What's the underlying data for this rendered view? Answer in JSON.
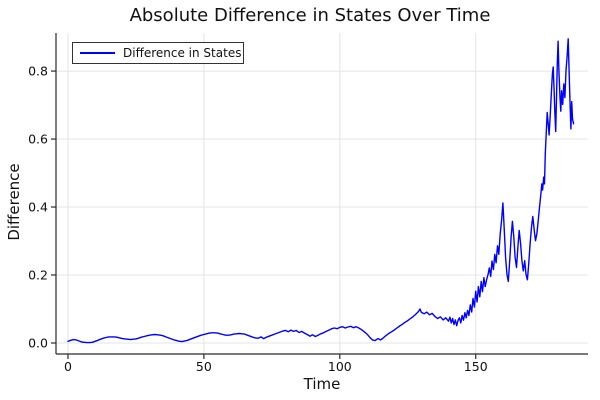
{
  "figure": {
    "background": "#ffffff"
  },
  "chart_data": {
    "type": "line",
    "title": "Absolute Difference in States Over Time",
    "xlabel": "Time",
    "ylabel": "Difference",
    "grid": true,
    "legend_position": "top-left",
    "xlim": [
      -4.4,
      191.3
    ],
    "ylim": [
      -0.0324,
      0.912
    ],
    "xticks": {
      "values": [
        0,
        50,
        100,
        150
      ],
      "labels": [
        "0",
        "50",
        "100",
        "150"
      ]
    },
    "yticks": {
      "values": [
        0.0,
        0.2,
        0.4,
        0.6,
        0.8
      ],
      "labels": [
        "0.0",
        "0.2",
        "0.4",
        "0.6",
        "0.8"
      ]
    },
    "colors": {
      "line": "#0000ff",
      "grid": "#e4e4e4",
      "axis": "#2a2a2a",
      "text": "#111111"
    },
    "series": [
      {
        "name": "Difference in States",
        "color": "#0000ff",
        "points": [
          [
            0,
            0.005
          ],
          [
            1,
            0.008
          ],
          [
            2,
            0.01
          ],
          [
            3,
            0.009
          ],
          [
            4,
            0.006
          ],
          [
            5,
            0.003
          ],
          [
            6,
            0.002
          ],
          [
            7,
            0.001
          ],
          [
            8,
            0.001
          ],
          [
            9,
            0.002
          ],
          [
            10,
            0.005
          ],
          [
            11,
            0.008
          ],
          [
            12,
            0.011
          ],
          [
            13,
            0.014
          ],
          [
            14,
            0.016
          ],
          [
            15,
            0.018
          ],
          [
            16,
            0.018
          ],
          [
            17,
            0.018
          ],
          [
            18,
            0.017
          ],
          [
            19,
            0.015
          ],
          [
            20,
            0.013
          ],
          [
            21,
            0.012
          ],
          [
            22,
            0.011
          ],
          [
            23,
            0.01
          ],
          [
            24,
            0.011
          ],
          [
            25,
            0.012
          ],
          [
            26,
            0.014
          ],
          [
            27,
            0.017
          ],
          [
            28,
            0.019
          ],
          [
            29,
            0.021
          ],
          [
            30,
            0.023
          ],
          [
            31,
            0.024
          ],
          [
            32,
            0.025
          ],
          [
            33,
            0.024
          ],
          [
            34,
            0.023
          ],
          [
            35,
            0.021
          ],
          [
            36,
            0.018
          ],
          [
            37,
            0.015
          ],
          [
            38,
            0.012
          ],
          [
            39,
            0.009
          ],
          [
            40,
            0.007
          ],
          [
            41,
            0.005
          ],
          [
            42,
            0.004
          ],
          [
            43,
            0.006
          ],
          [
            44,
            0.008
          ],
          [
            45,
            0.011
          ],
          [
            46,
            0.014
          ],
          [
            47,
            0.017
          ],
          [
            48,
            0.02
          ],
          [
            49,
            0.023
          ],
          [
            50,
            0.025
          ],
          [
            51,
            0.027
          ],
          [
            52,
            0.029
          ],
          [
            53,
            0.03
          ],
          [
            54,
            0.03
          ],
          [
            55,
            0.029
          ],
          [
            56,
            0.027
          ],
          [
            57,
            0.025
          ],
          [
            58,
            0.023
          ],
          [
            59,
            0.023
          ],
          [
            60,
            0.024
          ],
          [
            61,
            0.026
          ],
          [
            62,
            0.027
          ],
          [
            63,
            0.028
          ],
          [
            64,
            0.027
          ],
          [
            65,
            0.026
          ],
          [
            66,
            0.023
          ],
          [
            67,
            0.02
          ],
          [
            68,
            0.017
          ],
          [
            69,
            0.015
          ],
          [
            70,
            0.014
          ],
          [
            71,
            0.018
          ],
          [
            72,
            0.013
          ],
          [
            73,
            0.017
          ],
          [
            74,
            0.02
          ],
          [
            75,
            0.023
          ],
          [
            76,
            0.026
          ],
          [
            77,
            0.029
          ],
          [
            78,
            0.032
          ],
          [
            79,
            0.035
          ],
          [
            80,
            0.037
          ],
          [
            81,
            0.033
          ],
          [
            82,
            0.038
          ],
          [
            83,
            0.034
          ],
          [
            84,
            0.037
          ],
          [
            85,
            0.031
          ],
          [
            86,
            0.034
          ],
          [
            87,
            0.029
          ],
          [
            88,
            0.025
          ],
          [
            89,
            0.02
          ],
          [
            90,
            0.024
          ],
          [
            91,
            0.019
          ],
          [
            92,
            0.023
          ],
          [
            93,
            0.027
          ],
          [
            94,
            0.03
          ],
          [
            95,
            0.034
          ],
          [
            96,
            0.038
          ],
          [
            97,
            0.042
          ],
          [
            98,
            0.044
          ],
          [
            99,
            0.042
          ],
          [
            100,
            0.046
          ],
          [
            101,
            0.048
          ],
          [
            102,
            0.044
          ],
          [
            103,
            0.047
          ],
          [
            104,
            0.049
          ],
          [
            105,
            0.045
          ],
          [
            106,
            0.048
          ],
          [
            107,
            0.044
          ],
          [
            108,
            0.039
          ],
          [
            109,
            0.033
          ],
          [
            110,
            0.026
          ],
          [
            111,
            0.017
          ],
          [
            112,
            0.009
          ],
          [
            113,
            0.007
          ],
          [
            114,
            0.013
          ],
          [
            115,
            0.009
          ],
          [
            116,
            0.015
          ],
          [
            117,
            0.022
          ],
          [
            118,
            0.028
          ],
          [
            119,
            0.033
          ],
          [
            120,
            0.038
          ],
          [
            121,
            0.044
          ],
          [
            122,
            0.05
          ],
          [
            123,
            0.055
          ],
          [
            124,
            0.061
          ],
          [
            125,
            0.066
          ],
          [
            126,
            0.072
          ],
          [
            127,
            0.078
          ],
          [
            128,
            0.085
          ],
          [
            129,
            0.093
          ],
          [
            129.5,
            0.1
          ],
          [
            130,
            0.09
          ],
          [
            131,
            0.086
          ],
          [
            132,
            0.091
          ],
          [
            133,
            0.083
          ],
          [
            134,
            0.087
          ],
          [
            135,
            0.078
          ],
          [
            136,
            0.072
          ],
          [
            137,
            0.077
          ],
          [
            138,
            0.068
          ],
          [
            139,
            0.074
          ],
          [
            140,
            0.064
          ],
          [
            140.5,
            0.076
          ],
          [
            141,
            0.059
          ],
          [
            141.5,
            0.072
          ],
          [
            142,
            0.054
          ],
          [
            142.5,
            0.068
          ],
          [
            143,
            0.051
          ],
          [
            143.5,
            0.067
          ],
          [
            144,
            0.074
          ],
          [
            144.5,
            0.059
          ],
          [
            145,
            0.081
          ],
          [
            145.5,
            0.067
          ],
          [
            146,
            0.089
          ],
          [
            146.5,
            0.074
          ],
          [
            147,
            0.096
          ],
          [
            147.5,
            0.081
          ],
          [
            148,
            0.112
          ],
          [
            148.5,
            0.091
          ],
          [
            149,
            0.131
          ],
          [
            149.5,
            0.106
          ],
          [
            150,
            0.152
          ],
          [
            150.5,
            0.121
          ],
          [
            151,
            0.166
          ],
          [
            151.5,
            0.136
          ],
          [
            152,
            0.181
          ],
          [
            152.5,
            0.151
          ],
          [
            153,
            0.192
          ],
          [
            153.5,
            0.166
          ],
          [
            154,
            0.186
          ],
          [
            154.5,
            0.201
          ],
          [
            155,
            0.221
          ],
          [
            155.5,
            0.196
          ],
          [
            156,
            0.241
          ],
          [
            156.5,
            0.216
          ],
          [
            157,
            0.261
          ],
          [
            157.5,
            0.236
          ],
          [
            158,
            0.286
          ],
          [
            158.5,
            0.261
          ],
          [
            159,
            0.321
          ],
          [
            159.5,
            0.361
          ],
          [
            160,
            0.412
          ],
          [
            160.5,
            0.331
          ],
          [
            161,
            0.251
          ],
          [
            161.5,
            0.201
          ],
          [
            162,
            0.181
          ],
          [
            162.5,
            0.241
          ],
          [
            163,
            0.311
          ],
          [
            163.5,
            0.358
          ],
          [
            164,
            0.312
          ],
          [
            164.5,
            0.252
          ],
          [
            165,
            0.222
          ],
          [
            165.5,
            0.282
          ],
          [
            166,
            0.331
          ],
          [
            166.5,
            0.292
          ],
          [
            167,
            0.242
          ],
          [
            167.5,
            0.212
          ],
          [
            168,
            0.242
          ],
          [
            168.5,
            0.202
          ],
          [
            169,
            0.186
          ],
          [
            169.5,
            0.232
          ],
          [
            170,
            0.291
          ],
          [
            170.5,
            0.341
          ],
          [
            171,
            0.372
          ],
          [
            171.5,
            0.332
          ],
          [
            172,
            0.301
          ],
          [
            172.5,
            0.322
          ],
          [
            173,
            0.362
          ],
          [
            173.5,
            0.402
          ],
          [
            174,
            0.442
          ],
          [
            174.3,
            0.468
          ],
          [
            174.6,
            0.45
          ],
          [
            175,
            0.488
          ],
          [
            175.3,
            0.468
          ],
          [
            175.6,
            0.558
          ],
          [
            176,
            0.628
          ],
          [
            176.3,
            0.678
          ],
          [
            176.6,
            0.652
          ],
          [
            177,
            0.612
          ],
          [
            177.4,
            0.668
          ],
          [
            177.8,
            0.732
          ],
          [
            178.2,
            0.792
          ],
          [
            178.5,
            0.812
          ],
          [
            178.8,
            0.752
          ],
          [
            179.1,
            0.682
          ],
          [
            179.4,
            0.622
          ],
          [
            179.7,
            0.722
          ],
          [
            180,
            0.822
          ],
          [
            180.3,
            0.888
          ],
          [
            180.6,
            0.802
          ],
          [
            181,
            0.722
          ],
          [
            181.3,
            0.682
          ],
          [
            181.6,
            0.742
          ],
          [
            182,
            0.702
          ],
          [
            182.4,
            0.762
          ],
          [
            182.8,
            0.722
          ],
          [
            183.2,
            0.802
          ],
          [
            183.6,
            0.842
          ],
          [
            184,
            0.895
          ],
          [
            184.4,
            0.79
          ],
          [
            184.7,
            0.7
          ],
          [
            185,
            0.63
          ],
          [
            185.3,
            0.71
          ],
          [
            185.6,
            0.66
          ],
          [
            186,
            0.645
          ]
        ]
      }
    ]
  }
}
